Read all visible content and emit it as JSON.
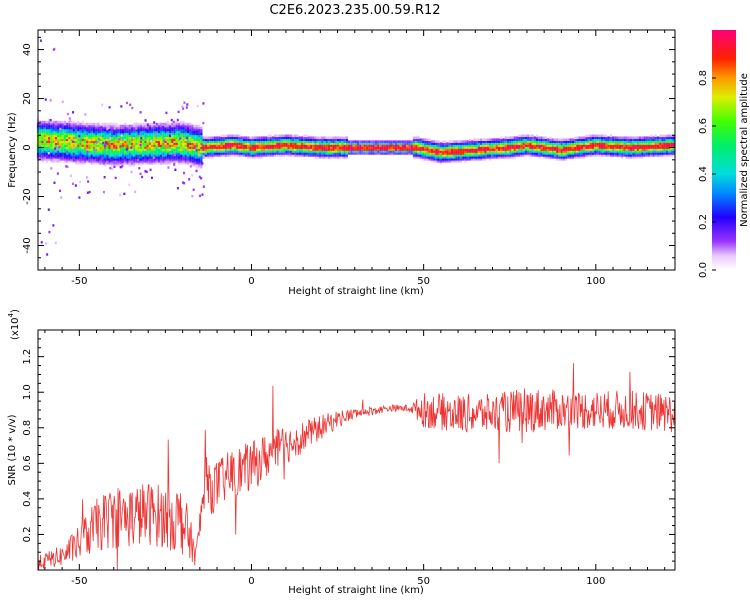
{
  "title": "C2E6.2023.235.00.59.R12",
  "colors": {
    "snr_line": "#ee3333",
    "frame": "#000000"
  },
  "chart_data": [
    {
      "type": "heatmap",
      "name": "spectrogram",
      "xlabel": "Height of straight line (km)",
      "ylabel": "Frequency (Hz)",
      "xlim": [
        -62,
        123
      ],
      "ylim": [
        -50,
        48
      ],
      "xticks": [
        -50,
        0,
        50,
        100
      ],
      "yticks": [
        -40,
        -20,
        0,
        20,
        40
      ],
      "colorbar": {
        "label": "Normalized spectral amplitude",
        "range": [
          0.0,
          1.0
        ],
        "ticks": [
          0.0,
          0.2,
          0.4,
          0.6,
          0.8
        ],
        "tick_labels": [
          "0.0",
          "0.2",
          "0.4",
          "0.6",
          "0.8"
        ]
      },
      "ridge": [
        {
          "x": -60,
          "y": 3
        },
        {
          "x": -50,
          "y": 2
        },
        {
          "x": -40,
          "y": 1
        },
        {
          "x": -30,
          "y": 1.5
        },
        {
          "x": -20,
          "y": 2
        },
        {
          "x": -14,
          "y": 0
        },
        {
          "x": -5,
          "y": 1
        },
        {
          "x": 0,
          "y": 0
        },
        {
          "x": 10,
          "y": 1
        },
        {
          "x": 20,
          "y": 0
        },
        {
          "x": 30,
          "y": 0
        },
        {
          "x": 40,
          "y": 0
        },
        {
          "x": 48,
          "y": 0
        },
        {
          "x": 55,
          "y": -2
        },
        {
          "x": 65,
          "y": -1
        },
        {
          "x": 75,
          "y": 0
        },
        {
          "x": 80,
          "y": 1
        },
        {
          "x": 90,
          "y": -1
        },
        {
          "x": 100,
          "y": 1
        },
        {
          "x": 110,
          "y": 0
        },
        {
          "x": 123,
          "y": 1
        }
      ]
    },
    {
      "type": "line",
      "name": "snr",
      "xlabel": "Height of straight line (km)",
      "ylabel": "SNR (10 * v/v)",
      "multiplier_label": "(x10",
      "multiplier_exp": "4",
      "multiplier_close": ")",
      "xlim": [
        -62,
        123
      ],
      "ylim": [
        0,
        1.35
      ],
      "xticks": [
        -50,
        0,
        50,
        100
      ],
      "yticks": [
        0.2,
        0.4,
        0.6,
        0.8,
        1.0,
        1.2
      ],
      "ytick_labels": [
        "0.2",
        "0.4",
        "0.6",
        "0.8",
        "1.0",
        "1.2"
      ],
      "envelope": [
        {
          "x": -62,
          "mean": 0.04,
          "spread": 0.04
        },
        {
          "x": -55,
          "mean": 0.08,
          "spread": 0.06
        },
        {
          "x": -50,
          "mean": 0.15,
          "spread": 0.1
        },
        {
          "x": -45,
          "mean": 0.25,
          "spread": 0.15
        },
        {
          "x": -40,
          "mean": 0.3,
          "spread": 0.18
        },
        {
          "x": -35,
          "mean": 0.3,
          "spread": 0.18
        },
        {
          "x": -30,
          "mean": 0.32,
          "spread": 0.18
        },
        {
          "x": -25,
          "mean": 0.3,
          "spread": 0.18
        },
        {
          "x": -20,
          "mean": 0.28,
          "spread": 0.2
        },
        {
          "x": -16,
          "mean": 0.08,
          "spread": 0.06
        },
        {
          "x": -14,
          "mean": 0.42,
          "spread": 0.15
        },
        {
          "x": -10,
          "mean": 0.48,
          "spread": 0.14
        },
        {
          "x": -5,
          "mean": 0.55,
          "spread": 0.14
        },
        {
          "x": 0,
          "mean": 0.58,
          "spread": 0.14
        },
        {
          "x": 5,
          "mean": 0.65,
          "spread": 0.13
        },
        {
          "x": 10,
          "mean": 0.7,
          "spread": 0.11
        },
        {
          "x": 15,
          "mean": 0.75,
          "spread": 0.09
        },
        {
          "x": 20,
          "mean": 0.8,
          "spread": 0.07
        },
        {
          "x": 25,
          "mean": 0.85,
          "spread": 0.05
        },
        {
          "x": 30,
          "mean": 0.88,
          "spread": 0.03
        },
        {
          "x": 40,
          "mean": 0.91,
          "spread": 0.02
        },
        {
          "x": 46,
          "mean": 0.91,
          "spread": 0.02
        },
        {
          "x": 50,
          "mean": 0.9,
          "spread": 0.1
        },
        {
          "x": 60,
          "mean": 0.88,
          "spread": 0.11
        },
        {
          "x": 70,
          "mean": 0.88,
          "spread": 0.11
        },
        {
          "x": 80,
          "mean": 0.9,
          "spread": 0.13
        },
        {
          "x": 90,
          "mean": 0.9,
          "spread": 0.11
        },
        {
          "x": 100,
          "mean": 0.9,
          "spread": 0.11
        },
        {
          "x": 110,
          "mean": 0.9,
          "spread": 0.11
        },
        {
          "x": 123,
          "mean": 0.88,
          "spread": 0.11
        }
      ]
    }
  ]
}
